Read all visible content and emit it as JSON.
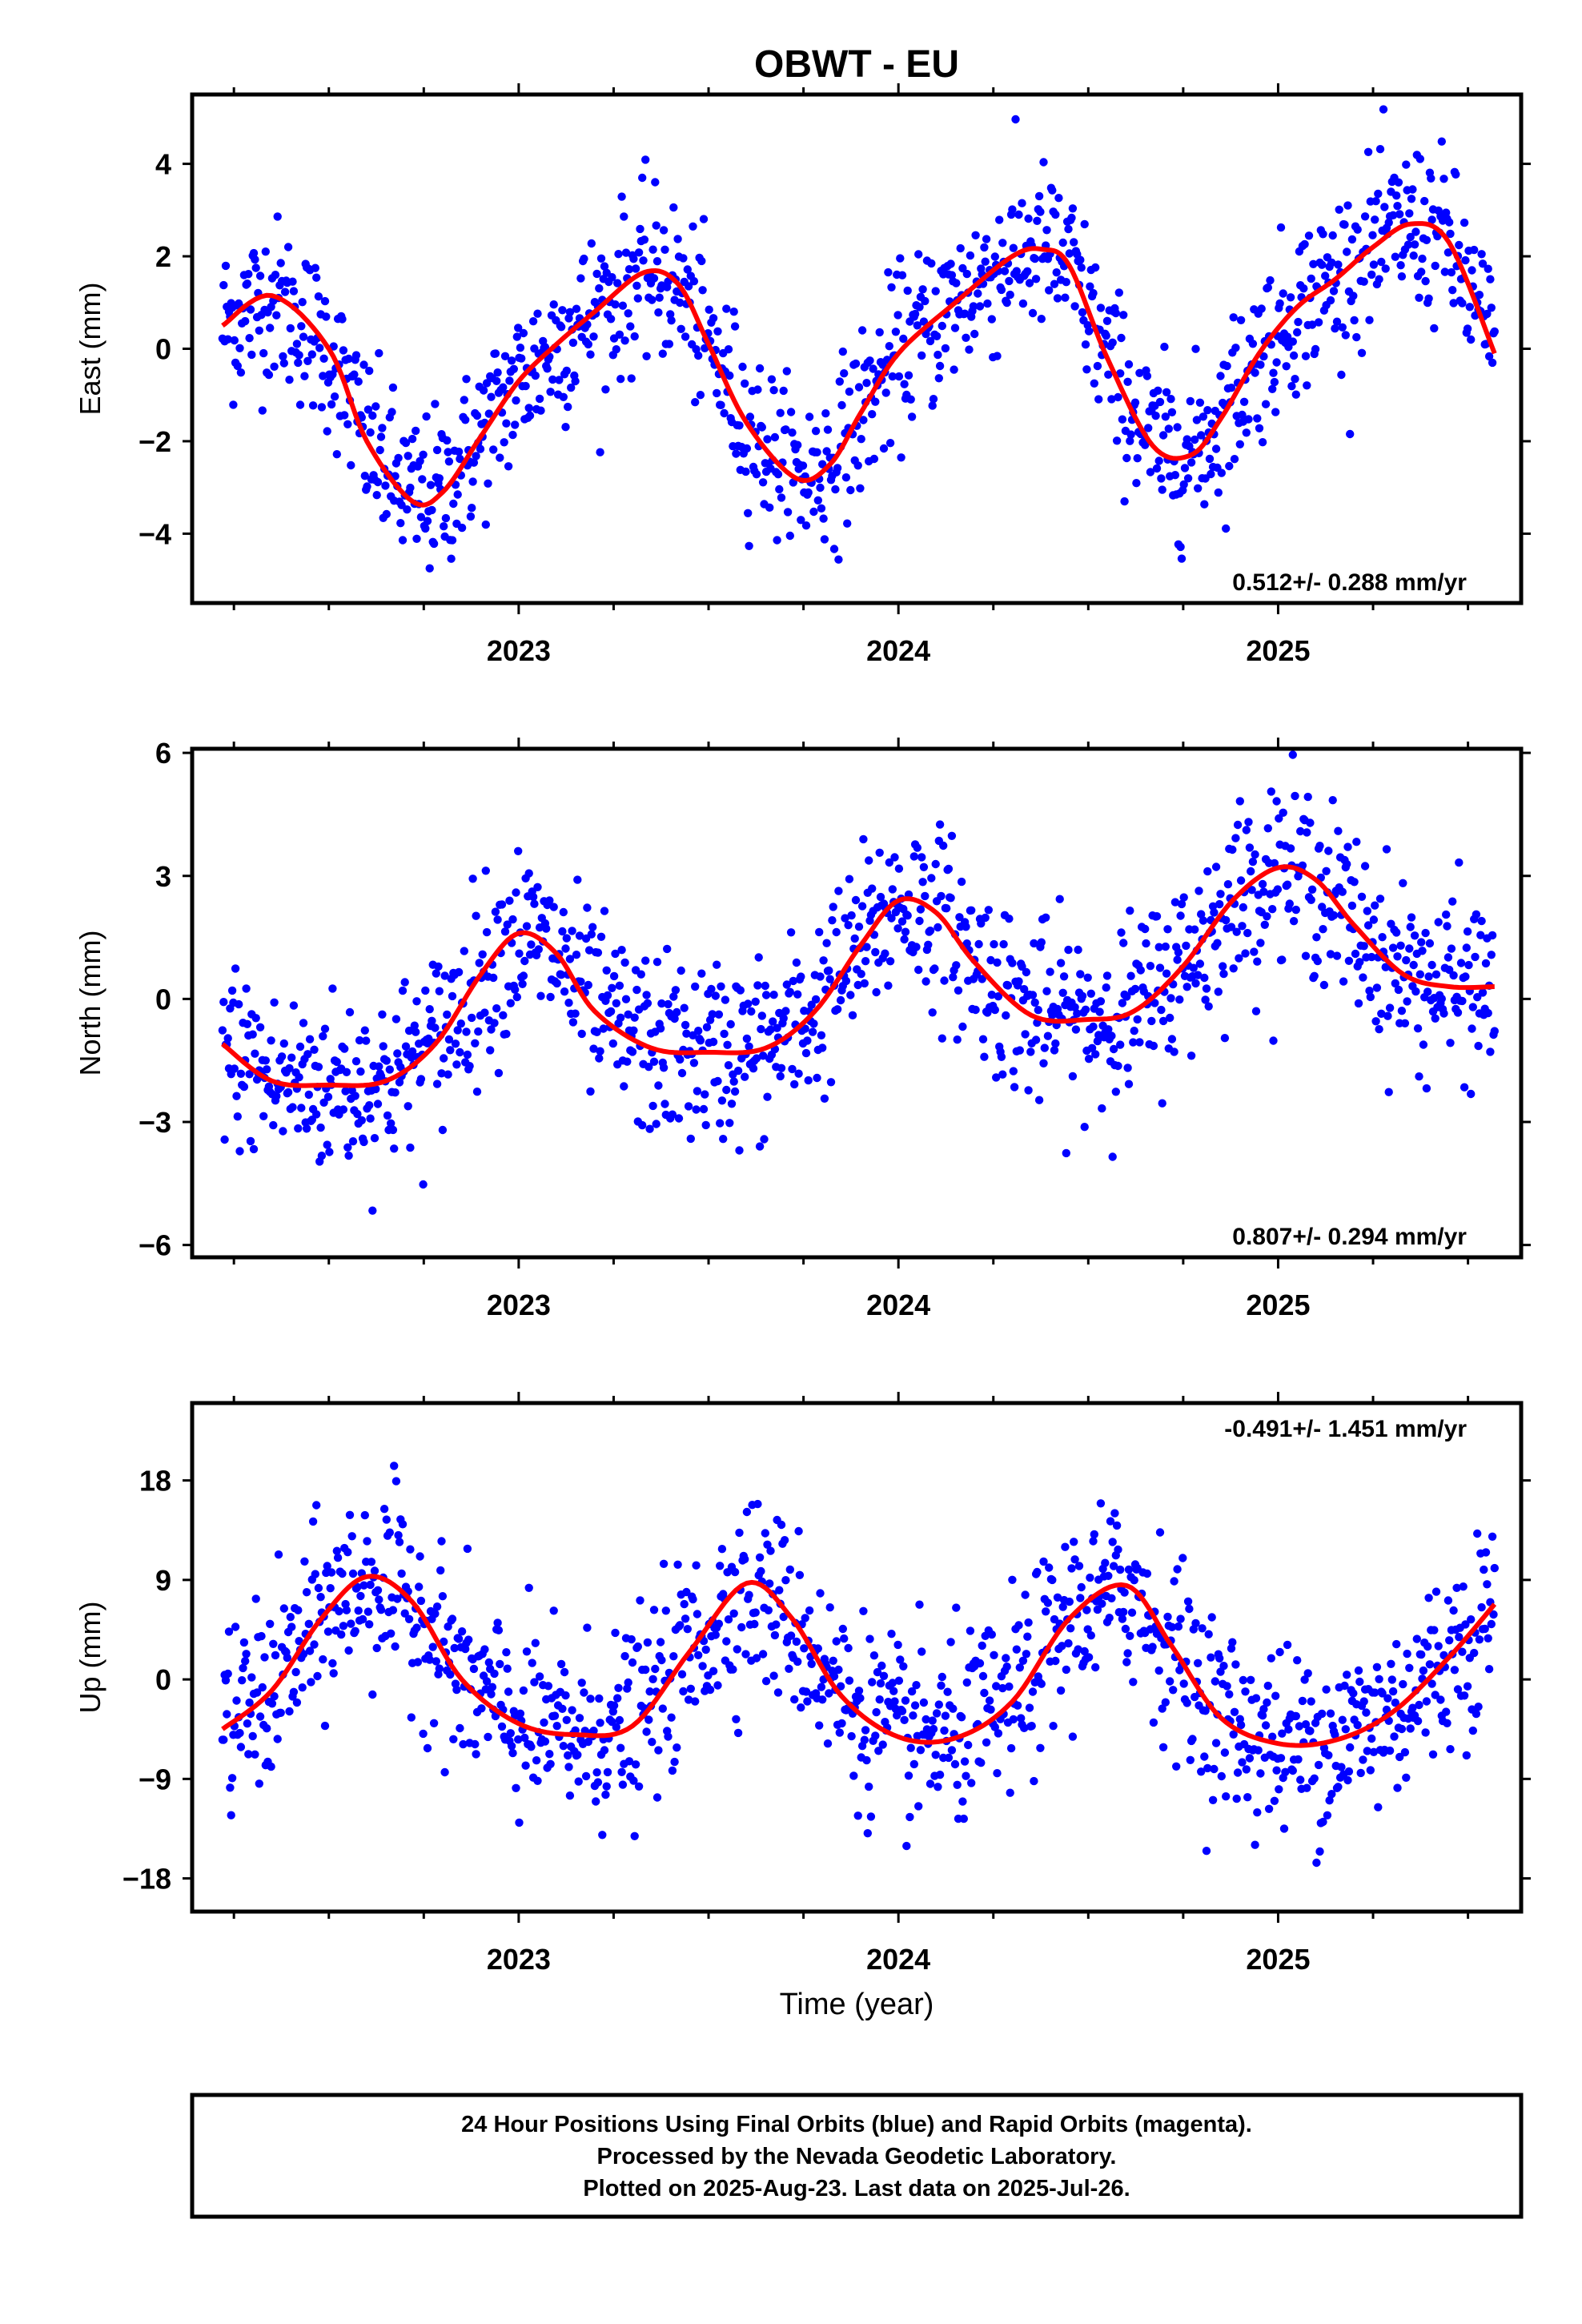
{
  "title": "OBWT - EU",
  "xlabel": "Time (year)",
  "colors": {
    "final_orbits": "#0000ff",
    "fit": "#ff0000",
    "axes": "#000000"
  },
  "footer": [
    "24 Hour Positions Using Final Orbits (blue) and Rapid Orbits (magenta).",
    "Processed by the Nevada Geodetic Laboratory.",
    "Plotted on 2025-Aug-23. Last data on 2025-Jul-26."
  ],
  "chart_data": [
    {
      "type": "scatter",
      "component": "East",
      "ylabel": "East (mm)",
      "xlim": [
        2022.14,
        2025.64
      ],
      "ylim": [
        -5.5,
        5.5
      ],
      "yticks": [
        -4,
        -2,
        0,
        2,
        4
      ],
      "ytick_labels": [
        "−4",
        "−2",
        "0",
        "2",
        "4"
      ],
      "xticks": [
        2023,
        2024,
        2025
      ],
      "xtick_labels": [
        "2023",
        "2024",
        "2025"
      ],
      "rate_label": "0.512+/- 0.288 mm/yr",
      "rate_position": "bottom-right",
      "fit_curve": {
        "x": [
          2022.22,
          2022.35,
          2022.5,
          2022.6,
          2022.72,
          2022.8,
          2022.9,
          2023.0,
          2023.1,
          2023.2,
          2023.33,
          2023.42,
          2023.5,
          2023.6,
          2023.73,
          2023.82,
          2023.9,
          2024.0,
          2024.15,
          2024.3,
          2024.38,
          2024.45,
          2024.55,
          2024.67,
          2024.77,
          2024.85,
          2024.95,
          2025.05,
          2025.15,
          2025.25,
          2025.35,
          2025.45,
          2025.57
        ],
        "y": [
          0.5,
          1.15,
          0.0,
          -2.0,
          -3.3,
          -3.1,
          -1.9,
          -0.7,
          0.1,
          0.8,
          1.65,
          1.4,
          0.1,
          -1.6,
          -2.8,
          -2.5,
          -1.4,
          -0.1,
          1.0,
          2.0,
          2.15,
          1.8,
          -0.2,
          -2.1,
          -2.3,
          -1.5,
          -0.1,
          0.9,
          1.5,
          2.2,
          2.7,
          2.3,
          -0.1
        ]
      },
      "scatter_model": {
        "trend": {
          "t0": 2022.22,
          "y0": 0.5,
          "rate_mm_per_yr": 0.512
        },
        "noise_sigma_mm": 0.9,
        "n_points": 1180
      }
    },
    {
      "type": "scatter",
      "component": "North",
      "ylabel": "North (mm)",
      "xlim": [
        2022.14,
        2025.64
      ],
      "ylim": [
        -6.3,
        6.1
      ],
      "yticks": [
        -6,
        -3,
        0,
        3,
        6
      ],
      "ytick_labels": [
        "−6",
        "−3",
        "0",
        "3",
        "6"
      ],
      "xticks": [
        2023,
        2024,
        2025
      ],
      "xtick_labels": [
        "2023",
        "2024",
        "2025"
      ],
      "rate_label": "0.807+/- 0.294 mm/yr",
      "rate_position": "bottom-right",
      "fit_curve": {
        "x": [
          2022.22,
          2022.35,
          2022.5,
          2022.65,
          2022.78,
          2022.9,
          2023.0,
          2023.1,
          2023.2,
          2023.35,
          2023.5,
          2023.65,
          2023.78,
          2023.9,
          2024.0,
          2024.1,
          2024.2,
          2024.35,
          2024.5,
          2024.62,
          2024.75,
          2024.88,
          2025.0,
          2025.1,
          2025.2,
          2025.33,
          2025.45,
          2025.57
        ],
        "y": [
          -1.1,
          -2.0,
          -2.1,
          -2.0,
          -1.1,
          0.6,
          1.6,
          1.1,
          -0.3,
          -1.2,
          -1.3,
          -1.2,
          -0.3,
          1.3,
          2.4,
          2.1,
          0.9,
          -0.4,
          -0.5,
          -0.3,
          0.8,
          2.4,
          3.2,
          2.9,
          1.8,
          0.6,
          0.3,
          0.3
        ]
      },
      "scatter_model": {
        "trend": {
          "t0": 2022.22,
          "y0": -1.1,
          "rate_mm_per_yr": 0.807
        },
        "noise_sigma_mm": 1.1,
        "n_points": 1180
      }
    },
    {
      "type": "scatter",
      "component": "Up",
      "ylabel": "Up (mm)",
      "xlim": [
        2022.14,
        2025.64
      ],
      "ylim": [
        -21,
        25
      ],
      "yticks": [
        -18,
        -9,
        0,
        9,
        18
      ],
      "ytick_labels": [
        "−18",
        "−9",
        "0",
        "9",
        "18"
      ],
      "xticks": [
        2023,
        2024,
        2025
      ],
      "xtick_labels": [
        "2023",
        "2024",
        "2025"
      ],
      "rate_label": "-0.491+/- 1.451 mm/yr",
      "rate_position": "top-right",
      "fit_curve": {
        "x": [
          2022.22,
          2022.35,
          2022.48,
          2022.6,
          2022.72,
          2022.85,
          2023.0,
          2023.15,
          2023.3,
          2023.45,
          2023.6,
          2023.72,
          2023.85,
          2024.0,
          2024.15,
          2024.3,
          2024.45,
          2024.6,
          2024.72,
          2024.85,
          2025.0,
          2025.15,
          2025.3,
          2025.45,
          2025.57
        ],
        "y": [
          -4.5,
          -1.0,
          5.5,
          9.3,
          7.0,
          0.0,
          -4.0,
          -5.0,
          -4.2,
          2.5,
          8.7,
          5.5,
          -1.5,
          -5.2,
          -5.3,
          -2.0,
          5.5,
          8.5,
          3.0,
          -3.5,
          -5.8,
          -5.5,
          -3.0,
          2.0,
          6.8
        ]
      },
      "scatter_model": {
        "trend": {
          "t0": 2022.22,
          "y0": -4.5,
          "rate_mm_per_yr": -0.491
        },
        "noise_sigma_mm": 4.2,
        "n_points": 1180
      }
    }
  ]
}
